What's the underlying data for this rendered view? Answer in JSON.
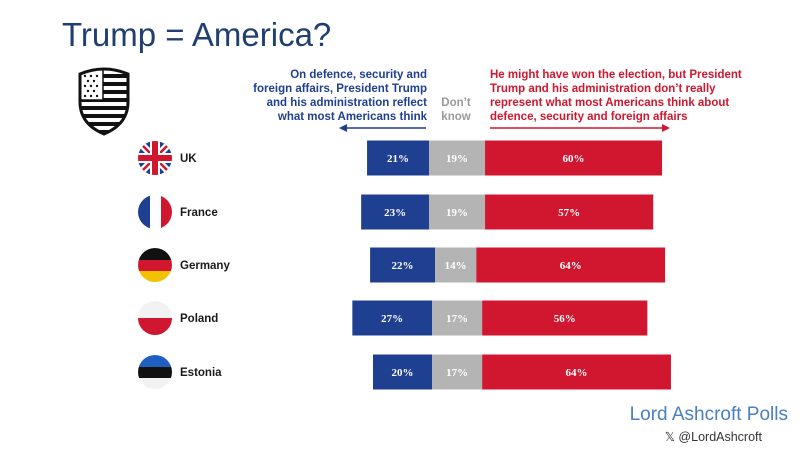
{
  "title": "Trump = America?",
  "headers": {
    "left": "On defence, security and\nforeign affairs, President Trump\nand his administration reflect\nwhat most Americans think",
    "middle": "Don’t\nknow",
    "right": "He might have won the election, but President\nTrump and his administration don’t really\nrepresent what most Americans think about\ndefence, security and foreign affairs"
  },
  "colors": {
    "reflect": "#1f3f91",
    "dont_know": "#b4b4b4",
    "not_represent": "#d0172f",
    "title": "#1f3f73",
    "brand": "#4a7fc0"
  },
  "chart_data": {
    "type": "bar",
    "orientation": "horizontal",
    "stacked": true,
    "categories": [
      "UK",
      "France",
      "Germany",
      "Poland",
      "Estonia"
    ],
    "series": [
      {
        "values": [
          21,
          23,
          22,
          27,
          20
        ],
        "labels": [
          "21%",
          "23%",
          "22%",
          "27%",
          "20%"
        ]
      },
      {
        "values": [
          19,
          19,
          14,
          17,
          17
        ],
        "labels": [
          "19%",
          "19%",
          "14%",
          "17%",
          "17%"
        ]
      },
      {
        "values": [
          60,
          57,
          64,
          56,
          64
        ],
        "labels": [
          "60%",
          "57%",
          "64%",
          "56%",
          "64%"
        ]
      }
    ],
    "flags": [
      "uk-flag-icon",
      "france-flag-icon",
      "germany-flag-icon",
      "poland-flag-icon",
      "estonia-flag-icon"
    ],
    "grid": false
  },
  "icons": {
    "shield": "us-flag-shield-icon"
  },
  "footer": {
    "brand": "Lord Ashcroft Polls",
    "handle": "𝕏 @LordAshcroft"
  }
}
